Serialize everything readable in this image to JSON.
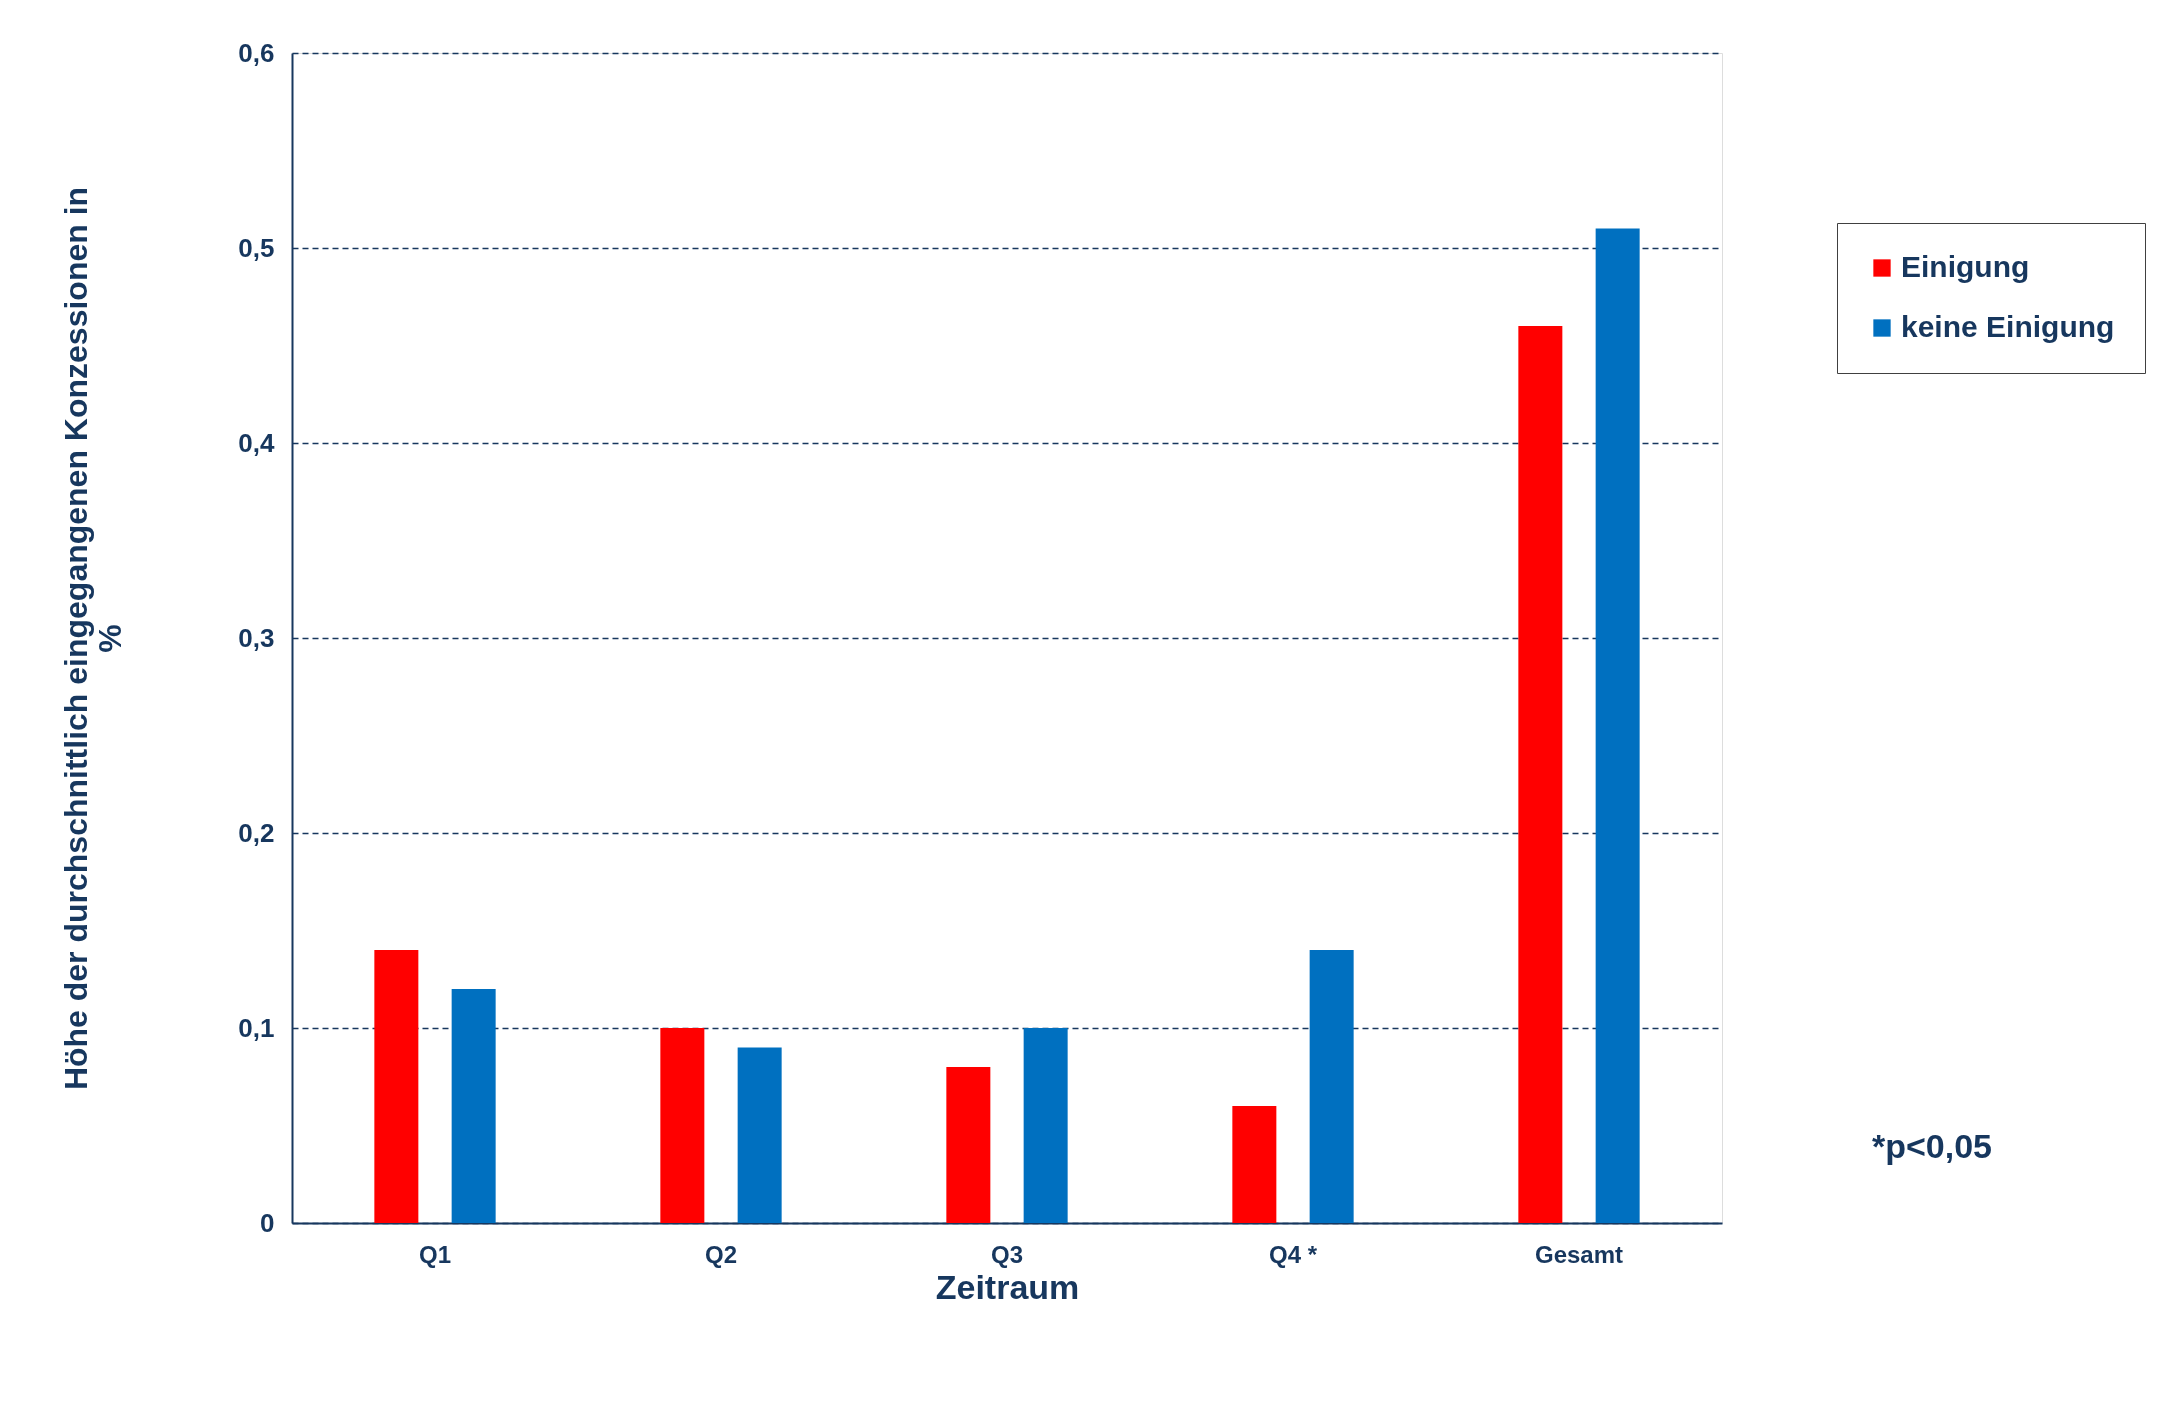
{
  "chart_data": {
    "type": "bar",
    "xlabel": "Zeitraum",
    "ylabel": "Höhe der durchschnittlich eingegangenen Konzessionen in %",
    "categories": [
      "Q1",
      "Q2",
      "Q3",
      "Q4 *",
      "Gesamt"
    ],
    "series": [
      {
        "name": "Einigung",
        "color": "#ff0000",
        "values": [
          0.14,
          0.1,
          0.08,
          0.06,
          0.46
        ]
      },
      {
        "name": "keine Einigung",
        "color": "#0070c0",
        "values": [
          0.12,
          0.09,
          0.1,
          0.14,
          0.51
        ]
      }
    ],
    "ylim": [
      0,
      0.6
    ],
    "yticks": [
      {
        "value": 0,
        "label": "0"
      },
      {
        "value": 0.1,
        "label": "0,1"
      },
      {
        "value": 0.2,
        "label": "0,2"
      },
      {
        "value": 0.3,
        "label": "0,3"
      },
      {
        "value": 0.4,
        "label": "0,4"
      },
      {
        "value": 0.5,
        "label": "0,5"
      },
      {
        "value": 0.6,
        "label": "0,6"
      }
    ],
    "grid": "y",
    "legend": "right",
    "annotations": [
      "*p<0,05"
    ]
  }
}
